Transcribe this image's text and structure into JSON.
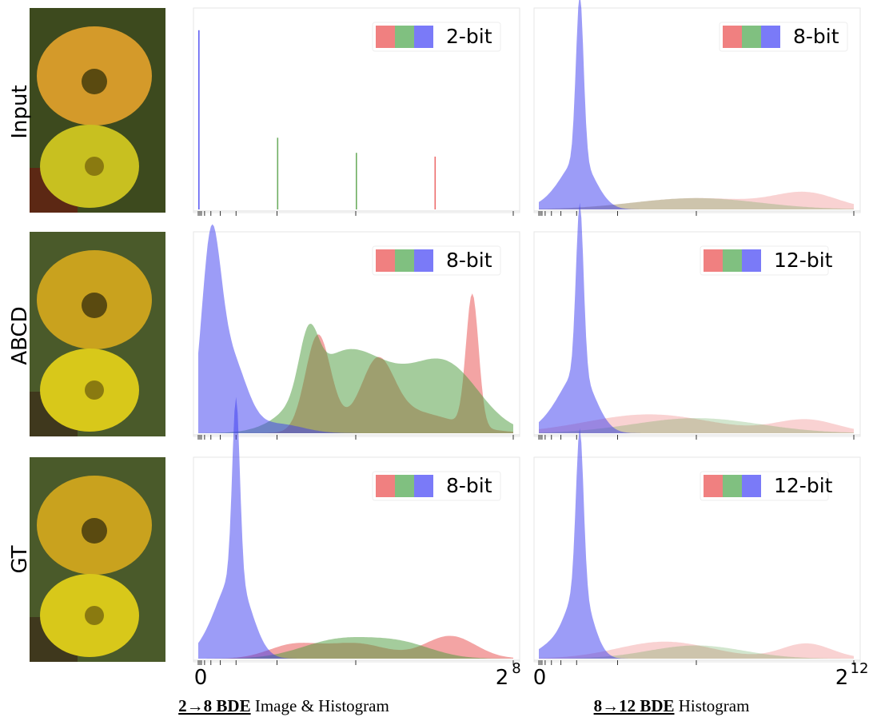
{
  "rows": [
    {
      "label": "Input",
      "panels": [
        {
          "legend": "2-bit"
        },
        {
          "legend": "8-bit"
        }
      ]
    },
    {
      "label": "ABCD",
      "panels": [
        {
          "legend": "8-bit"
        },
        {
          "legend": "12-bit"
        }
      ]
    },
    {
      "label": "GT",
      "panels": [
        {
          "legend": "8-bit"
        },
        {
          "legend": "12-bit"
        }
      ]
    }
  ],
  "axes": [
    {
      "min": "0",
      "base": "2",
      "exp": "8"
    },
    {
      "min": "0",
      "base": "2",
      "exp": "12"
    }
  ],
  "captions": [
    {
      "bold": "2→8 BDE",
      "text": "Image & Histogram"
    },
    {
      "bold": "8→12 BDE",
      "text": "Histogram"
    }
  ]
}
